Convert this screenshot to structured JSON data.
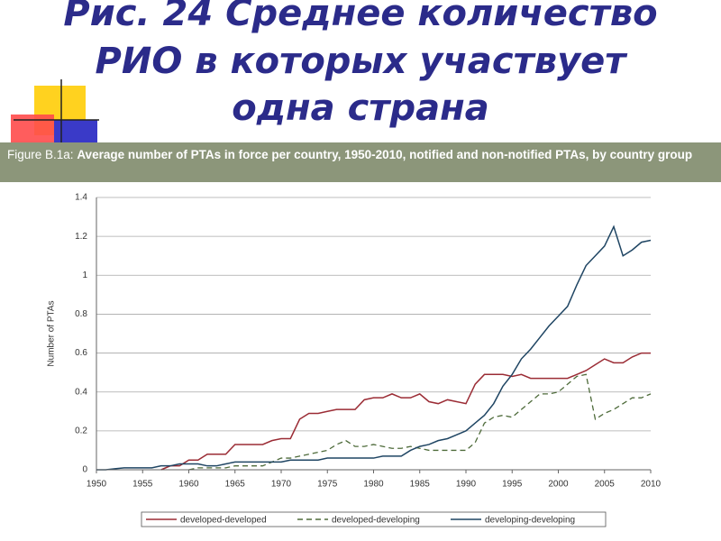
{
  "title_lines": [
    "Рис. 24 Среднее количество",
    "РИО в которых участвует",
    "одна страна"
  ],
  "figure_label": "Figure B.1a:",
  "caption": "Average number of PTAs in force per country, 1950-2010, notified and non-notified PTAs, by country group",
  "chart_data": {
    "type": "line",
    "y_label": "Number of PTAs",
    "x": [
      1950,
      1951,
      1952,
      1953,
      1954,
      1955,
      1956,
      1957,
      1958,
      1959,
      1960,
      1961,
      1962,
      1963,
      1964,
      1965,
      1966,
      1967,
      1968,
      1969,
      1970,
      1971,
      1972,
      1973,
      1974,
      1975,
      1976,
      1977,
      1978,
      1979,
      1980,
      1981,
      1982,
      1983,
      1984,
      1985,
      1986,
      1987,
      1988,
      1989,
      1990,
      1991,
      1992,
      1993,
      1994,
      1995,
      1996,
      1997,
      1998,
      1999,
      2000,
      2001,
      2002,
      2003,
      2004,
      2005,
      2006,
      2007,
      2008,
      2009,
      2010
    ],
    "xlim": [
      1950,
      2010
    ],
    "xticks": [
      1950,
      1955,
      1960,
      1965,
      1970,
      1975,
      1980,
      1985,
      1990,
      1995,
      2000,
      2005,
      2010
    ],
    "ylim": [
      0,
      1.4
    ],
    "yticks": [
      0,
      0.2,
      0.4,
      0.6,
      0.8,
      1,
      1.2,
      1.4
    ],
    "grid": true,
    "series": [
      {
        "name": "developed-developed",
        "color": "#9b2c35",
        "style": "solid",
        "values": [
          null,
          null,
          null,
          null,
          null,
          null,
          null,
          0,
          0.02,
          0.02,
          0.05,
          0.05,
          0.08,
          0.08,
          0.08,
          0.13,
          0.13,
          0.13,
          0.13,
          0.15,
          0.16,
          0.16,
          0.26,
          0.29,
          0.29,
          0.3,
          0.31,
          0.31,
          0.31,
          0.36,
          0.37,
          0.37,
          0.39,
          0.37,
          0.37,
          0.39,
          0.35,
          0.34,
          0.36,
          0.35,
          0.34,
          0.44,
          0.49,
          0.49,
          0.49,
          0.48,
          0.49,
          0.47,
          0.47,
          0.47,
          0.47,
          0.47,
          0.49,
          0.51,
          0.54,
          0.57,
          0.55,
          0.55,
          0.58,
          0.6,
          0.6
        ]
      },
      {
        "name": "developed-developing",
        "color": "#4e6b3a",
        "style": "dashed",
        "values": [
          null,
          null,
          null,
          null,
          null,
          null,
          null,
          null,
          null,
          null,
          0,
          0.01,
          0.01,
          0.01,
          0.01,
          0.02,
          0.02,
          0.02,
          0.02,
          0.04,
          0.06,
          0.06,
          0.07,
          0.08,
          0.09,
          0.1,
          0.13,
          0.15,
          0.12,
          0.12,
          0.13,
          0.12,
          0.11,
          0.11,
          0.12,
          0.11,
          0.1,
          0.1,
          0.1,
          0.1,
          0.1,
          0.14,
          0.24,
          0.27,
          0.28,
          0.27,
          0.31,
          0.35,
          0.39,
          0.39,
          0.4,
          0.44,
          0.48,
          0.49,
          0.26,
          0.29,
          0.31,
          0.34,
          0.37,
          0.37,
          0.39
        ]
      },
      {
        "name": "developing-developing",
        "color": "#1f4563",
        "style": "solid",
        "values": [
          0,
          0,
          0.005,
          0.01,
          0.01,
          0.01,
          0.01,
          0.02,
          0.02,
          0.03,
          0.03,
          0.03,
          0.02,
          0.02,
          0.03,
          0.04,
          0.04,
          0.04,
          0.04,
          0.04,
          0.04,
          0.05,
          0.05,
          0.05,
          0.05,
          0.06,
          0.06,
          0.06,
          0.06,
          0.06,
          0.06,
          0.07,
          0.07,
          0.07,
          0.1,
          0.12,
          0.13,
          0.15,
          0.16,
          0.18,
          0.2,
          0.24,
          0.28,
          0.34,
          0.43,
          0.49,
          0.57,
          0.62,
          0.68,
          0.74,
          0.79,
          0.84,
          0.95,
          1.05,
          1.1,
          1.15,
          1.25,
          1.1,
          1.13,
          1.17,
          1.18
        ]
      }
    ]
  }
}
